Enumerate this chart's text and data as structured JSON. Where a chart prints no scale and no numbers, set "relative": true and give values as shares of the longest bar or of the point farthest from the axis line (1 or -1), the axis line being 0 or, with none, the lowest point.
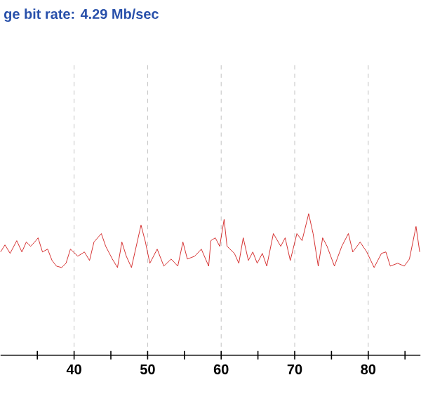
{
  "chart_data": {
    "type": "line",
    "title": "ge bit rate: 4.29 Mb/sec",
    "relative": true,
    "x": [
      30,
      30.6,
      31.3,
      32.2,
      32.9,
      33.5,
      34.1,
      34.8,
      35.1,
      35.7,
      36.4,
      37,
      37.6,
      38.3,
      38.9,
      39.5,
      40.5,
      41.4,
      42.1,
      42.7,
      43.7,
      44.3,
      45.2,
      45.9,
      46.5,
      47.1,
      47.8,
      49.1,
      49.7,
      50.3,
      51.3,
      52.2,
      53.2,
      54.1,
      54.8,
      55.4,
      56.4,
      57.3,
      58.3,
      58.6,
      59.2,
      59.8,
      60.4,
      60.8,
      61.8,
      62.4,
      63,
      63.7,
      64.3,
      64.9,
      65.6,
      66.2,
      67.1,
      68.1,
      68.7,
      69.4,
      70.3,
      71,
      71.9,
      72.5,
      73.2,
      73.8,
      74.4,
      75.4,
      76.4,
      77.3,
      77.9,
      78.9,
      79.8,
      80.8,
      81.8,
      82.4,
      83,
      84,
      84.9,
      85.6,
      86.5,
      87
    ],
    "values": [
      0.73,
      0.78,
      0.72,
      0.81,
      0.73,
      0.8,
      0.77,
      0.81,
      0.83,
      0.73,
      0.75,
      0.67,
      0.63,
      0.62,
      0.65,
      0.75,
      0.7,
      0.73,
      0.67,
      0.8,
      0.86,
      0.77,
      0.68,
      0.62,
      0.8,
      0.7,
      0.62,
      0.92,
      0.8,
      0.65,
      0.75,
      0.63,
      0.68,
      0.63,
      0.8,
      0.68,
      0.7,
      0.75,
      0.63,
      0.81,
      0.83,
      0.77,
      0.96,
      0.77,
      0.72,
      0.65,
      0.83,
      0.67,
      0.73,
      0.65,
      0.72,
      0.63,
      0.86,
      0.77,
      0.83,
      0.67,
      0.86,
      0.81,
      1.0,
      0.86,
      0.63,
      0.83,
      0.77,
      0.63,
      0.77,
      0.86,
      0.73,
      0.8,
      0.73,
      0.62,
      0.72,
      0.73,
      0.63,
      0.65,
      0.63,
      0.68,
      0.91,
      0.73
    ],
    "color": "#cc0000",
    "xlim": [
      30,
      87.1
    ],
    "xticks": [
      {
        "value": 35,
        "label": null
      },
      40,
      {
        "value": 45,
        "label": null
      },
      50,
      {
        "value": 55,
        "label": null
      },
      60,
      {
        "value": 65,
        "label": null
      },
      70,
      {
        "value": 75,
        "label": null
      },
      80,
      {
        "value": 85,
        "label": null
      }
    ],
    "grid": "x",
    "marker": "none",
    "line_style": "solid",
    "tick_labels": "x"
  }
}
